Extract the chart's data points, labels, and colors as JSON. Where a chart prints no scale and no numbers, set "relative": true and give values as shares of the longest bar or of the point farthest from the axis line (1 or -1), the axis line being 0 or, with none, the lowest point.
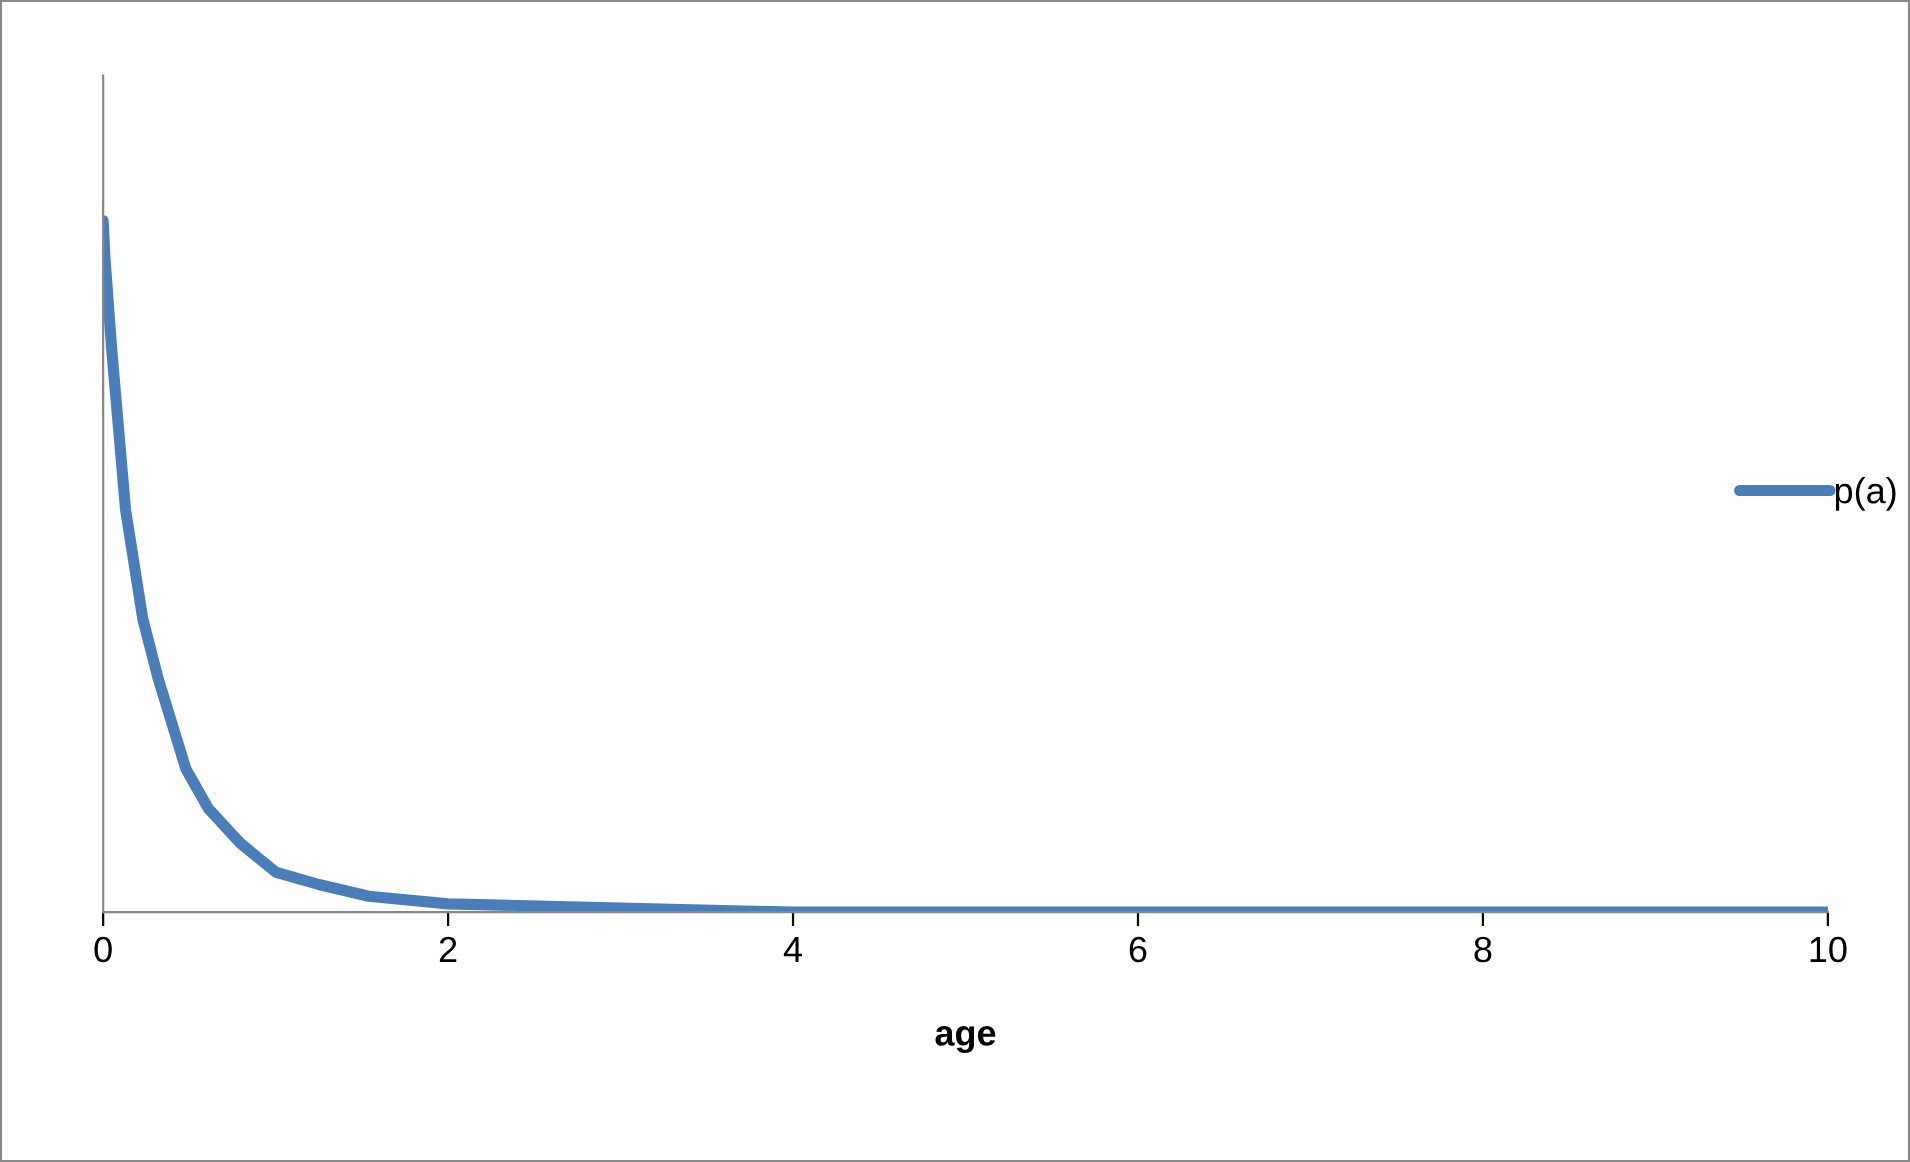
{
  "chart_data": {
    "type": "line",
    "xlabel": "age",
    "relative": true,
    "tick_labels": "x",
    "legend": "right",
    "grid": false,
    "xlim": [
      0,
      10
    ],
    "xticks": [
      0,
      2,
      4,
      6,
      8,
      10
    ],
    "series": [
      {
        "name": "p(a)",
        "color": "#4a7ebb",
        "x": [
          0,
          0.01,
          0.05,
          0.13,
          0.23,
          0.32,
          0.48,
          0.61,
          0.79,
          1.0,
          1.25,
          1.54,
          2.0,
          3.0,
          4.0,
          10
        ],
        "values": [
          1.0,
          0.948,
          0.813,
          0.582,
          0.424,
          0.337,
          0.207,
          0.15,
          0.101,
          0.058,
          0.04,
          0.023,
          0.012,
          0.006,
          0,
          0
        ]
      }
    ]
  }
}
